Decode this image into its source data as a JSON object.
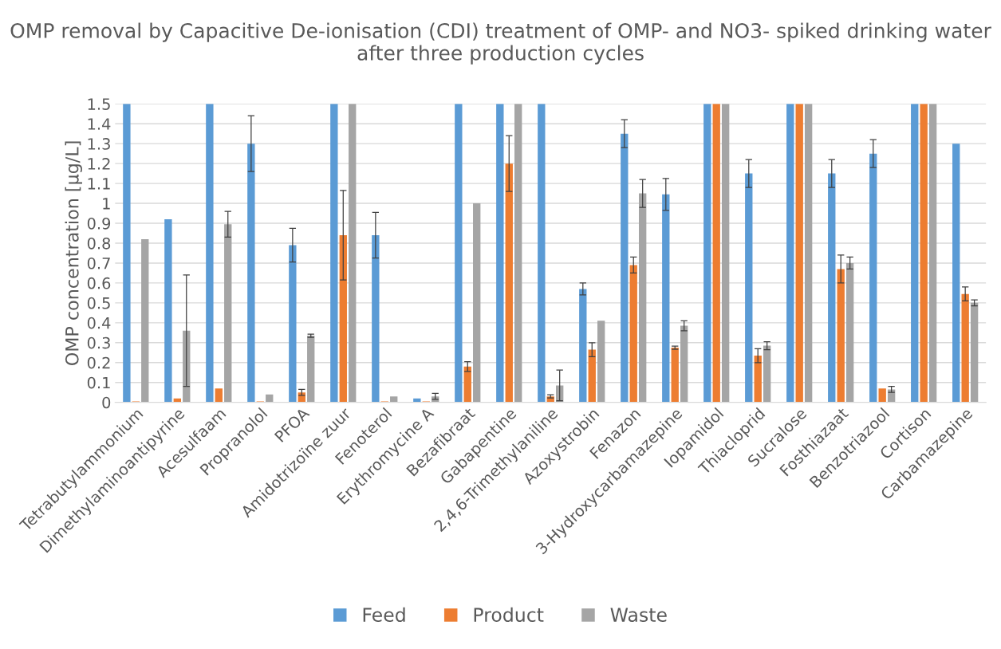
{
  "chart_data": {
    "type": "bar",
    "title": "OMP removal by Capacitive De-ionisation (CDI) treatment of OMP- and NO3- spiked drinking water after three production cycles",
    "ylabel": "OMP concentration [µg/L]",
    "categories": [
      "Tetrabutylammonium",
      "Dimethylaminoantipyrine",
      "Acesulfaam",
      "Propranolol",
      "PFOA",
      "Amidotrizoïne zuur",
      "Fenoterol",
      "Erythromycine A",
      "Bezafibraat",
      "Gabapentine",
      "2,4,6-Trimethylaniline",
      "Azoxystrobin",
      "Fenazon",
      "3-Hydroxycarbamazepine",
      "Iopamidol",
      "Thiacloprid",
      "Sucralose",
      "Fosthiazaat",
      "Benzotriazool",
      "Cortison",
      "Carbamazepine"
    ],
    "series": [
      {
        "name": "Feed",
        "color": "#5b9bd5",
        "values": [
          1.5,
          0.92,
          1.5,
          1.3,
          0.79,
          1.5,
          0.84,
          0.02,
          1.5,
          1.5,
          1.5,
          0.57,
          1.35,
          1.045,
          1.5,
          1.15,
          1.5,
          1.15,
          1.25,
          1.5,
          1.3
        ],
        "errors": [
          null,
          null,
          null,
          0.14,
          0.085,
          null,
          0.115,
          null,
          null,
          null,
          null,
          0.03,
          0.07,
          0.08,
          null,
          0.07,
          null,
          0.07,
          0.07,
          null,
          null
        ]
      },
      {
        "name": "Product",
        "color": "#ed7d31",
        "values": [
          0.005,
          0.02,
          0.07,
          0.005,
          0.05,
          0.84,
          0.005,
          0.005,
          0.18,
          1.2,
          0.03,
          0.265,
          0.69,
          0.275,
          1.5,
          0.235,
          1.5,
          0.67,
          0.07,
          1.5,
          0.545
        ],
        "errors": [
          null,
          null,
          null,
          null,
          0.015,
          0.225,
          null,
          null,
          0.025,
          0.14,
          0.008,
          0.035,
          0.04,
          0.008,
          null,
          0.035,
          null,
          0.07,
          null,
          null,
          0.035
        ]
      },
      {
        "name": "Waste",
        "color": "#a5a5a5",
        "values": [
          0.82,
          0.36,
          0.895,
          0.04,
          0.335,
          1.5,
          0.03,
          0.03,
          1.0,
          1.5,
          0.085,
          0.41,
          1.05,
          0.385,
          1.5,
          0.285,
          1.5,
          0.7,
          0.065,
          1.5,
          0.5
        ],
        "errors": [
          null,
          0.28,
          0.065,
          null,
          0.008,
          null,
          null,
          0.015,
          null,
          null,
          0.077,
          null,
          0.07,
          0.025,
          null,
          0.02,
          null,
          0.03,
          0.015,
          null,
          0.015
        ]
      }
    ],
    "ylim": [
      0,
      1.5
    ],
    "yticks": [
      0,
      0.1,
      0.2,
      0.3,
      0.4,
      0.5,
      0.6,
      0.7,
      0.8,
      0.9,
      1,
      1.1,
      1.2,
      1.3,
      1.4,
      1.5
    ],
    "grid": "y",
    "legend": "bottom"
  }
}
